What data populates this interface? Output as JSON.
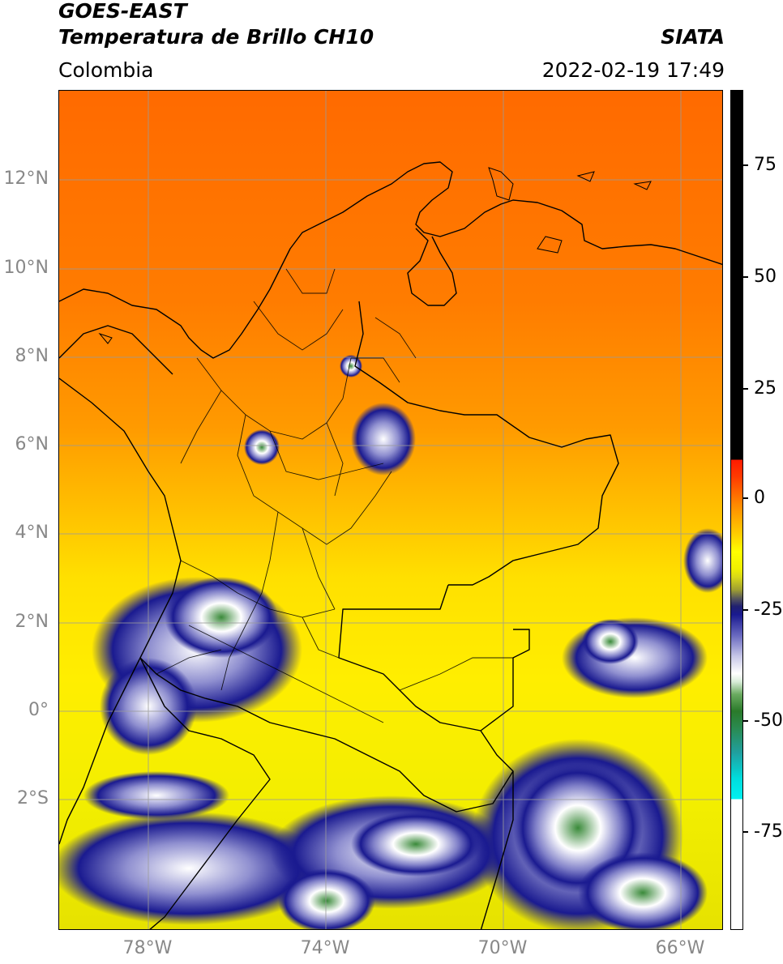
{
  "header": {
    "satellite": "GOES-EAST",
    "product": "Temperatura de Brillo CH10",
    "agency": "SIATA",
    "region": "Colombia",
    "datetime": "2022-02-19 17:49"
  },
  "map": {
    "lat_labels": [
      "12°N",
      "10°N",
      "8°N",
      "6°N",
      "4°N",
      "2°N",
      "0°",
      "2°S"
    ],
    "lon_labels": [
      "78°W",
      "74°W",
      "70°W",
      "66°W"
    ],
    "lat_range": [
      -4.8,
      14.1
    ],
    "lon_range": [
      -80,
      -65
    ],
    "colors": {
      "warm": "#ff6a00",
      "mid": "#ffd000",
      "cold_blue": "#1a1a90",
      "cold_green": "#3a8a3a",
      "border": "#000000",
      "grid": "#9a9a9a"
    }
  },
  "colorbar": {
    "labels": [
      "75",
      "50",
      "25",
      "0",
      "-25",
      "-50",
      "-75"
    ],
    "range": [
      -95,
      90
    ]
  }
}
